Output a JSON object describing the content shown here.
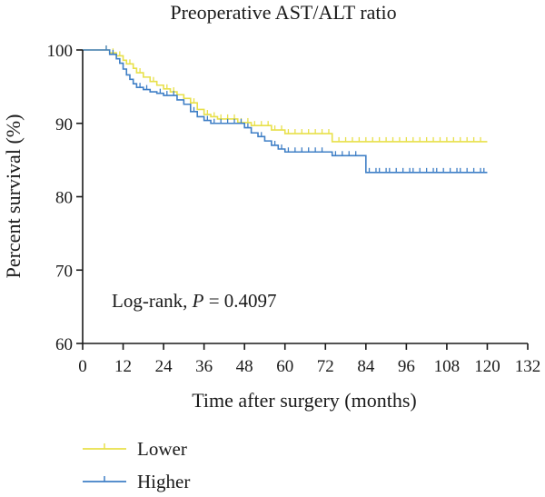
{
  "chart_data": {
    "type": "line",
    "title": "Preoperative AST/ALT ratio",
    "xlabel": "Time after surgery (months)",
    "ylabel": "Percent survival (%)",
    "xlim": [
      0,
      132
    ],
    "ylim": [
      60,
      100
    ],
    "xticks": [
      0,
      12,
      24,
      36,
      48,
      60,
      72,
      84,
      96,
      108,
      120,
      132
    ],
    "yticks": [
      60,
      70,
      80,
      90,
      100
    ],
    "annotation": {
      "prefix": "Log-rank, ",
      "italic": "P",
      "suffix": " = 0.4097"
    },
    "legend_position": "bottom-left",
    "series": [
      {
        "name": "Lower",
        "color": "#e8e04a",
        "x": [
          0,
          6,
          8,
          10,
          12,
          13,
          15,
          16,
          18,
          20,
          22,
          24,
          26,
          28,
          30,
          32,
          34,
          36,
          38,
          40,
          46,
          50,
          56,
          60,
          74,
          120
        ],
        "y": [
          100,
          100,
          99.6,
          99.2,
          98.6,
          98.1,
          97.5,
          96.9,
          96.3,
          95.7,
          95.2,
          94.7,
          94.3,
          93.9,
          93.4,
          92.8,
          91.9,
          91.2,
          90.9,
          90.6,
          90.1,
          89.7,
          89.1,
          88.6,
          87.5,
          87.5
        ],
        "censor_x": [
          7,
          9,
          11,
          14,
          17,
          21,
          25,
          27,
          33,
          37,
          39,
          41,
          43,
          45,
          47,
          49,
          51,
          53,
          55,
          57,
          59,
          61,
          63,
          65,
          67,
          69,
          71,
          73,
          76,
          78,
          80,
          82,
          84,
          86,
          88,
          90,
          92,
          94,
          96,
          98,
          100,
          102,
          104,
          106,
          108,
          110,
          112,
          114,
          116,
          118
        ]
      },
      {
        "name": "Higher",
        "color": "#3f7fc6",
        "x": [
          0,
          6,
          8,
          10,
          11,
          12,
          13,
          14,
          15,
          16,
          18,
          20,
          22,
          24,
          28,
          30,
          32,
          34,
          36,
          38,
          48,
          50,
          52,
          54,
          56,
          58,
          60,
          62,
          70,
          74,
          82,
          84,
          120
        ],
        "y": [
          100,
          100,
          99.4,
          98.8,
          98.2,
          97.4,
          96.6,
          96.0,
          95.4,
          94.9,
          94.6,
          94.3,
          94.1,
          93.8,
          93.2,
          92.6,
          91.6,
          90.9,
          90.4,
          90.0,
          89.4,
          88.7,
          88.2,
          87.6,
          87.0,
          86.5,
          86.1,
          86.1,
          86.1,
          85.6,
          85.6,
          83.3,
          83.3
        ],
        "censor_x": [
          7,
          9,
          17,
          19,
          23,
          25,
          27,
          33,
          37,
          39,
          41,
          43,
          45,
          47,
          49,
          53,
          57,
          59,
          61,
          63,
          65,
          67,
          69,
          71,
          75,
          77,
          79,
          81,
          85,
          87,
          88,
          90,
          91,
          93,
          95,
          97,
          98,
          100,
          102,
          104,
          105,
          107,
          109,
          111,
          112,
          114,
          116,
          118,
          119
        ]
      }
    ]
  }
}
